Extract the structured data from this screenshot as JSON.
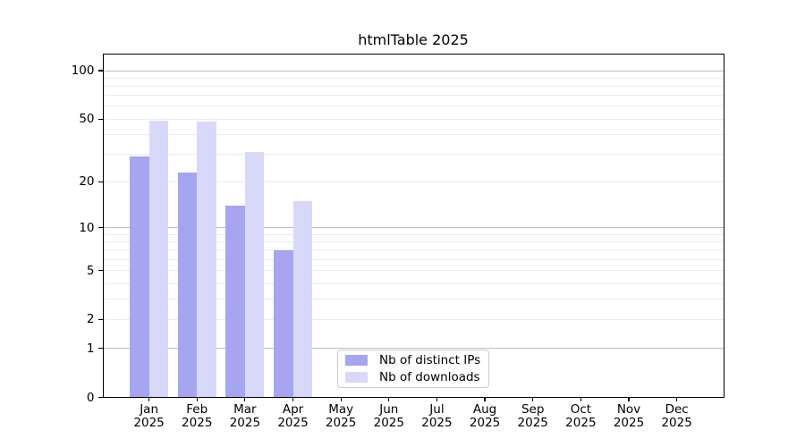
{
  "chart_data": {
    "type": "bar",
    "title": "htmlTable 2025",
    "categories": [
      "Jan",
      "Feb",
      "Mar",
      "Apr",
      "May",
      "Jun",
      "Jul",
      "Aug",
      "Sep",
      "Oct",
      "Nov",
      "Dec"
    ],
    "x_year_label": "2025",
    "series": [
      {
        "name": "Nb of distinct IPs",
        "color": "#a5a5f2",
        "values": [
          29,
          23,
          14,
          7,
          0,
          0,
          0,
          0,
          0,
          0,
          0,
          0
        ]
      },
      {
        "name": "Nb of downloads",
        "color": "#d8d8f8",
        "values": [
          49,
          48,
          31,
          15,
          0,
          0,
          0,
          0,
          0,
          0,
          0,
          0
        ]
      }
    ],
    "y_axis": {
      "scale": "log10(value+1)",
      "labeled_ticks": [
        0,
        1,
        2,
        5,
        10,
        20,
        50,
        100
      ],
      "gridlines_dark": [
        1,
        10,
        100
      ],
      "gridlines_light": [
        2,
        3,
        4,
        5,
        6,
        7,
        8,
        9,
        20,
        30,
        40,
        50,
        60,
        70,
        80,
        90
      ],
      "ylim": [
        0,
        128
      ]
    },
    "grid": "horizontal",
    "legend": {
      "position": "inside-bottom-center"
    },
    "colors": {
      "decade_grid": "#bdbdbd",
      "minor_grid": "#ebebeb",
      "spine": "#000000",
      "text": "#000000",
      "background": "#ffffff"
    }
  }
}
